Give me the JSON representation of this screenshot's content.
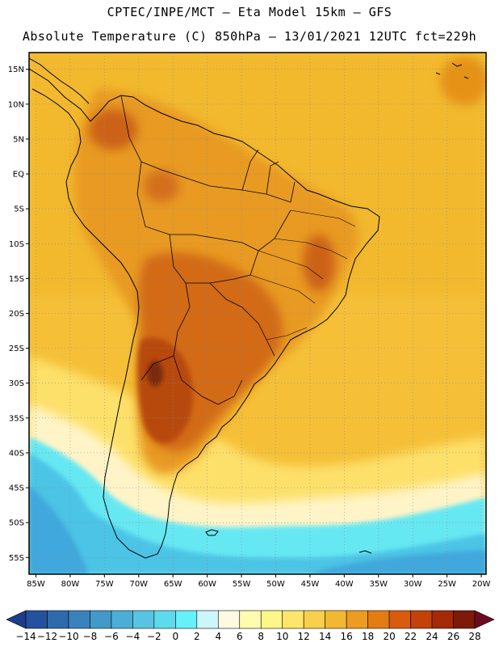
{
  "header": {
    "line1": "CPTEC/INPE/MCT –  Eta Model 15km – GFS",
    "line2": "Absolute Temperature (C) 850hPa – 13/01/2021 12UTC fct=229h"
  },
  "map": {
    "lat_labels": [
      "15N",
      "10N",
      "5N",
      "EQ",
      "5S",
      "10S",
      "15S",
      "20S",
      "25S",
      "30S",
      "35S",
      "40S",
      "45S",
      "50S",
      "55S"
    ],
    "lon_labels": [
      "85W",
      "80W",
      "75W",
      "70W",
      "65W",
      "60W",
      "55W",
      "50W",
      "45W",
      "40W",
      "35W",
      "30W",
      "25W",
      "20W"
    ],
    "colors": {
      "ocean_base": "#f5c038",
      "land_warm": "#e48a1e",
      "hot": "#c65a12",
      "hottest": "#7a2a0c",
      "cool": "#fbe37a",
      "pale": "#fff4c8",
      "cyan": "#66e8f2",
      "blue": "#3fa8dc",
      "border": "#000000"
    }
  },
  "colorbar": {
    "labels": [
      "-14",
      "-12",
      "-10",
      "-8",
      "-6",
      "-4",
      "-2",
      "0",
      "2",
      "4",
      "6",
      "8",
      "10",
      "12",
      "14",
      "16",
      "18",
      "20",
      "22",
      "24",
      "26",
      "28"
    ],
    "colors": [
      "#1e3d8c",
      "#25529c",
      "#2e6aac",
      "#3a82bc",
      "#4399c8",
      "#4caed6",
      "#57c5e2",
      "#5edaee",
      "#66f0fa",
      "#cdf6fc",
      "#fff9e0",
      "#fffbb0",
      "#fff68a",
      "#fde66a",
      "#f8d04e",
      "#f3b832",
      "#ec9c20",
      "#e47c14",
      "#d85c0c",
      "#c4420a",
      "#a42a08",
      "#7e1a08",
      "#6e0a1e"
    ]
  }
}
